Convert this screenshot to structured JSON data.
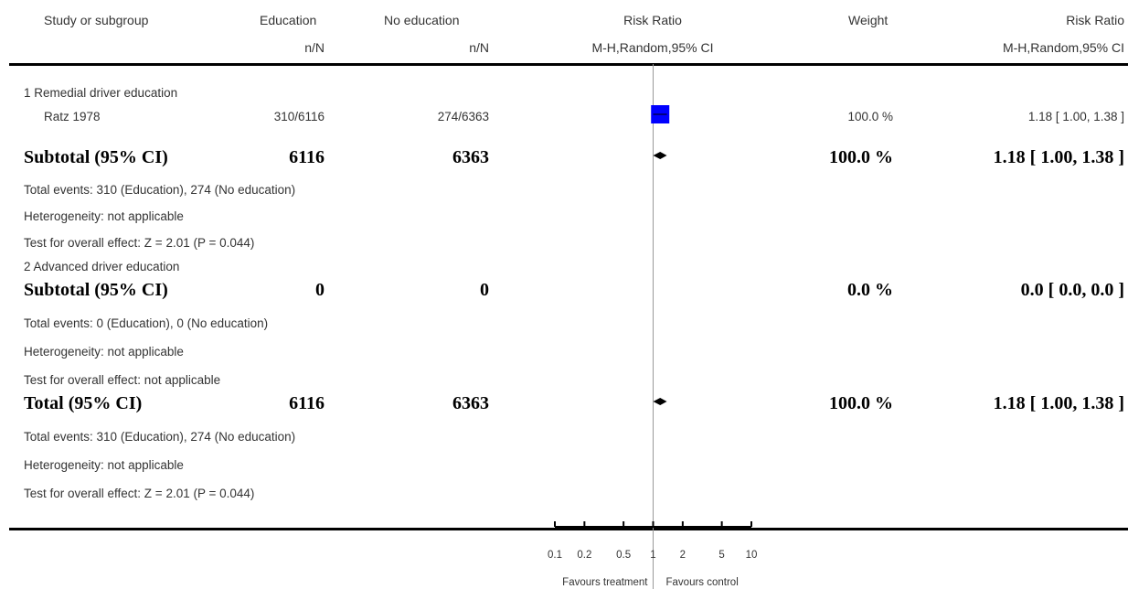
{
  "header": {
    "col_study": "Study or subgroup",
    "col_edu": "Education",
    "col_edu_sub": "n/N",
    "col_noedu": "No education",
    "col_noedu_sub": "n/N",
    "col_rr": "Risk Ratio",
    "col_rr_sub": "M-H,Random,95% CI",
    "col_weight": "Weight",
    "col_rr2": "Risk Ratio",
    "col_rr2_sub": "M-H,Random,95% CI"
  },
  "groups": [
    {
      "title": "1 Remedial driver education",
      "studies": [
        {
          "name": "Ratz 1978",
          "edu": "310/6116",
          "noedu": "274/6363",
          "weight": "100.0 %",
          "ci_text": "1.18 [ 1.00, 1.38 ]"
        }
      ],
      "subtotal": {
        "label": "Subtotal (95% CI)",
        "edu": "6116",
        "noedu": "6363",
        "weight": "100.0 %",
        "ci_text": "1.18 [ 1.00, 1.38 ]"
      },
      "notes": [
        "Total events: 310 (Education), 274 (No education)",
        "Heterogeneity: not applicable",
        "Test for overall effect: Z = 2.01  (P = 0.044)"
      ]
    },
    {
      "title": "2 Advanced driver education",
      "studies": [],
      "subtotal": {
        "label": "Subtotal (95% CI)",
        "edu": "0",
        "noedu": "0",
        "weight": "0.0 %",
        "ci_text": "0.0 [ 0.0, 0.0 ]"
      },
      "notes": [
        "Total events: 0 (Education), 0 (No education)",
        "Heterogeneity: not applicable",
        "Test for overall effect: not applicable"
      ]
    }
  ],
  "total": {
    "label": "Total (95% CI)",
    "edu": "6116",
    "noedu": "6363",
    "weight": "100.0 %",
    "ci_text": "1.18 [ 1.00, 1.38 ]",
    "notes": [
      "Total events: 310 (Education), 274 (No education)",
      "Heterogeneity: not applicable",
      "Test for overall effect: Z = 2.01  (P = 0.044)"
    ]
  },
  "axis": {
    "favours_left": "Favours treatment",
    "favours_right": "Favours control"
  },
  "colors": {
    "study_box": "#0000ff",
    "diamond": "#000000",
    "line_of_no_effect": "#999999"
  },
  "chart_data": {
    "type": "forest",
    "scale": "log",
    "xlim": [
      0.1,
      10
    ],
    "ticks": [
      0.1,
      0.2,
      0.5,
      1,
      2,
      5,
      10
    ],
    "tick_labels": [
      "0.1",
      "0.2",
      "0.5",
      "1",
      "2",
      "5",
      "10"
    ],
    "null_value": 1,
    "points": [
      {
        "row": "study",
        "name": "Ratz 1978",
        "rr": 1.18,
        "lo": 1.0,
        "hi": 1.38,
        "weight": 100.0
      },
      {
        "row": "subtotal-1",
        "name": "Subtotal (95% CI)",
        "rr": 1.18,
        "lo": 1.0,
        "hi": 1.38
      },
      {
        "row": "total",
        "name": "Total (95% CI)",
        "rr": 1.18,
        "lo": 1.0,
        "hi": 1.38
      }
    ]
  }
}
